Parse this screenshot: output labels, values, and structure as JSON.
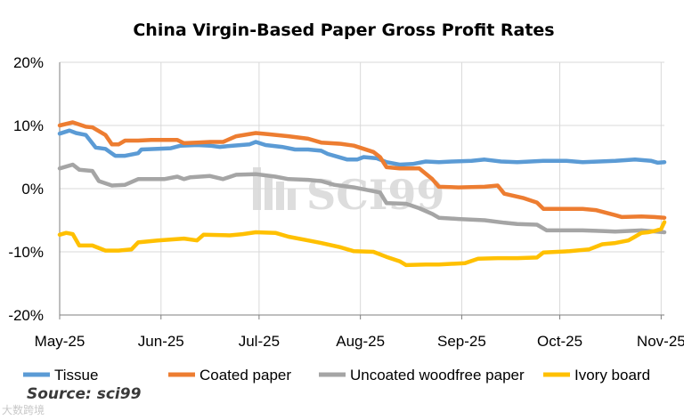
{
  "chart_data": {
    "type": "line",
    "title": "China Virgin-Based Paper Gross Profit Rates",
    "xlabel": "",
    "ylabel": "",
    "ylim": [
      -20,
      20
    ],
    "yticks": [
      20,
      10,
      0,
      -10,
      -20
    ],
    "ytick_labels": [
      "20%",
      "10%",
      "0%",
      "-10%",
      "-20%"
    ],
    "x_range": [
      0,
      185
    ],
    "x_ticks": [
      {
        "label": "May-25",
        "x": 0
      },
      {
        "label": "Jun-25",
        "x": 31
      },
      {
        "label": "Jul-25",
        "x": 61
      },
      {
        "label": "Aug-25",
        "x": 92
      },
      {
        "label": "Sep-25",
        "x": 123
      },
      {
        "label": "Oct-25",
        "x": 153
      },
      {
        "label": "Nov-25",
        "x": 184
      }
    ],
    "grid": true,
    "legend_position": "bottom",
    "series": [
      {
        "name": "Tissue",
        "color": "#5b9bd5",
        "points": [
          [
            0,
            8.7
          ],
          [
            3,
            9.2
          ],
          [
            5,
            8.8
          ],
          [
            8,
            8.5
          ],
          [
            11,
            6.5
          ],
          [
            14,
            6.3
          ],
          [
            17,
            5.2
          ],
          [
            20,
            5.2
          ],
          [
            24,
            5.6
          ],
          [
            25,
            6.2
          ],
          [
            30,
            6.3
          ],
          [
            34,
            6.4
          ],
          [
            37,
            6.8
          ],
          [
            42,
            6.9
          ],
          [
            46,
            6.8
          ],
          [
            49,
            6.6
          ],
          [
            53,
            6.8
          ],
          [
            58,
            7.0
          ],
          [
            60,
            7.4
          ],
          [
            63,
            6.9
          ],
          [
            68,
            6.6
          ],
          [
            72,
            6.2
          ],
          [
            76,
            6.2
          ],
          [
            80,
            6.0
          ],
          [
            82,
            5.5
          ],
          [
            86,
            4.9
          ],
          [
            88,
            4.6
          ],
          [
            91,
            4.6
          ],
          [
            93,
            5.0
          ],
          [
            97,
            4.8
          ],
          [
            100,
            4.2
          ],
          [
            104,
            3.8
          ],
          [
            108,
            3.9
          ],
          [
            112,
            4.3
          ],
          [
            116,
            4.2
          ],
          [
            120,
            4.3
          ],
          [
            126,
            4.4
          ],
          [
            130,
            4.6
          ],
          [
            135,
            4.3
          ],
          [
            140,
            4.2
          ],
          [
            148,
            4.4
          ],
          [
            155,
            4.4
          ],
          [
            160,
            4.2
          ],
          [
            170,
            4.4
          ],
          [
            176,
            4.6
          ],
          [
            181,
            4.4
          ],
          [
            183,
            4.1
          ],
          [
            185,
            4.2
          ]
        ]
      },
      {
        "name": "Coated paper",
        "color": "#ed7d31",
        "points": [
          [
            0,
            10.0
          ],
          [
            4,
            10.5
          ],
          [
            8,
            9.8
          ],
          [
            10,
            9.7
          ],
          [
            14,
            8.5
          ],
          [
            16,
            7.0
          ],
          [
            18,
            7.0
          ],
          [
            20,
            7.6
          ],
          [
            24,
            7.6
          ],
          [
            28,
            7.7
          ],
          [
            36,
            7.7
          ],
          [
            38,
            7.2
          ],
          [
            42,
            7.3
          ],
          [
            46,
            7.4
          ],
          [
            50,
            7.4
          ],
          [
            54,
            8.3
          ],
          [
            60,
            8.8
          ],
          [
            64,
            8.6
          ],
          [
            70,
            8.3
          ],
          [
            76,
            7.9
          ],
          [
            80,
            7.3
          ],
          [
            86,
            7.1
          ],
          [
            90,
            6.8
          ],
          [
            96,
            5.8
          ],
          [
            98,
            5.0
          ],
          [
            100,
            3.4
          ],
          [
            104,
            3.2
          ],
          [
            110,
            3.2
          ],
          [
            114,
            1.5
          ],
          [
            116,
            0.3
          ],
          [
            122,
            0.2
          ],
          [
            130,
            0.3
          ],
          [
            134,
            0.5
          ],
          [
            136,
            -0.8
          ],
          [
            142,
            -1.5
          ],
          [
            146,
            -2.2
          ],
          [
            148,
            -3.2
          ],
          [
            160,
            -3.2
          ],
          [
            164,
            -3.4
          ],
          [
            170,
            -4.2
          ],
          [
            172,
            -4.5
          ],
          [
            178,
            -4.4
          ],
          [
            182,
            -4.5
          ],
          [
            185,
            -4.6
          ]
        ]
      },
      {
        "name": "Uncoated woodfree paper",
        "color": "#a5a5a5",
        "points": [
          [
            0,
            3.2
          ],
          [
            4,
            3.8
          ],
          [
            6,
            3.0
          ],
          [
            10,
            2.8
          ],
          [
            12,
            1.2
          ],
          [
            16,
            0.5
          ],
          [
            20,
            0.6
          ],
          [
            24,
            1.5
          ],
          [
            32,
            1.5
          ],
          [
            36,
            1.9
          ],
          [
            38,
            1.5
          ],
          [
            40,
            1.8
          ],
          [
            46,
            2.0
          ],
          [
            50,
            1.5
          ],
          [
            54,
            2.2
          ],
          [
            60,
            2.3
          ],
          [
            66,
            1.9
          ],
          [
            70,
            1.5
          ],
          [
            76,
            1.4
          ],
          [
            80,
            1.2
          ],
          [
            84,
            0.6
          ],
          [
            90,
            0.2
          ],
          [
            98,
            -0.6
          ],
          [
            100,
            -2.3
          ],
          [
            106,
            -2.4
          ],
          [
            110,
            -3.1
          ],
          [
            114,
            -4.0
          ],
          [
            116,
            -4.6
          ],
          [
            122,
            -4.8
          ],
          [
            130,
            -5.0
          ],
          [
            136,
            -5.4
          ],
          [
            140,
            -5.6
          ],
          [
            146,
            -5.7
          ],
          [
            149,
            -6.6
          ],
          [
            160,
            -6.6
          ],
          [
            166,
            -6.7
          ],
          [
            170,
            -6.8
          ],
          [
            178,
            -6.6
          ],
          [
            185,
            -6.9
          ]
        ]
      },
      {
        "name": "Ivory board",
        "color": "#ffc000",
        "points": [
          [
            0,
            -7.3
          ],
          [
            2,
            -7.0
          ],
          [
            4,
            -7.2
          ],
          [
            6,
            -9.0
          ],
          [
            10,
            -9.0
          ],
          [
            14,
            -9.8
          ],
          [
            18,
            -9.8
          ],
          [
            22,
            -9.6
          ],
          [
            24,
            -8.5
          ],
          [
            30,
            -8.2
          ],
          [
            38,
            -7.9
          ],
          [
            42,
            -8.2
          ],
          [
            44,
            -7.3
          ],
          [
            52,
            -7.4
          ],
          [
            56,
            -7.2
          ],
          [
            60,
            -6.9
          ],
          [
            66,
            -7.0
          ],
          [
            70,
            -7.6
          ],
          [
            76,
            -8.2
          ],
          [
            80,
            -8.6
          ],
          [
            86,
            -9.3
          ],
          [
            90,
            -9.9
          ],
          [
            96,
            -10.0
          ],
          [
            100,
            -10.8
          ],
          [
            104,
            -11.5
          ],
          [
            106,
            -12.1
          ],
          [
            112,
            -12.0
          ],
          [
            116,
            -12.0
          ],
          [
            124,
            -11.8
          ],
          [
            128,
            -11.1
          ],
          [
            134,
            -11.0
          ],
          [
            140,
            -11.0
          ],
          [
            146,
            -10.9
          ],
          [
            148,
            -10.1
          ],
          [
            156,
            -9.9
          ],
          [
            162,
            -9.6
          ],
          [
            166,
            -8.8
          ],
          [
            170,
            -8.6
          ],
          [
            174,
            -8.2
          ],
          [
            176,
            -7.6
          ],
          [
            178,
            -7.0
          ],
          [
            180,
            -6.9
          ],
          [
            182,
            -6.7
          ],
          [
            184,
            -6.4
          ],
          [
            185,
            -5.3
          ]
        ]
      }
    ]
  },
  "watermark": {
    "text": "SCI99"
  },
  "source": {
    "text": "Source: sci99"
  },
  "corner_logo": {
    "text": "大数跨境"
  }
}
